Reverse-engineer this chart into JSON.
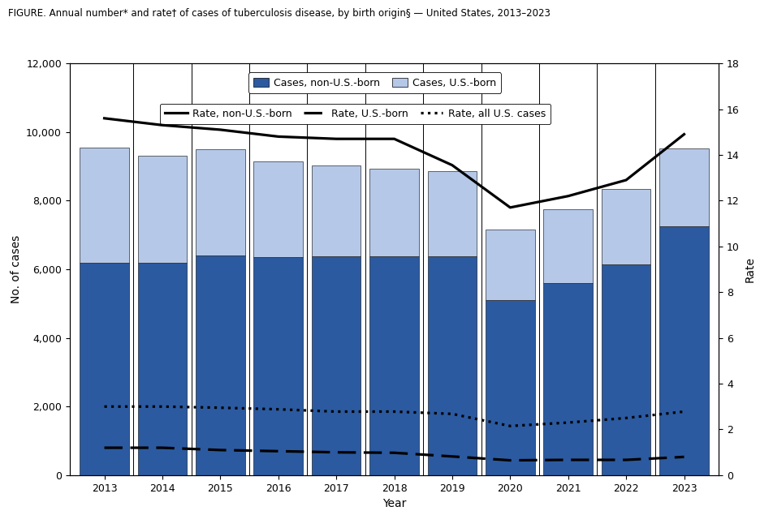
{
  "title": "FIGURE. Annual number* and rate† of cases of tuberculosis disease, by birth origin§ — United States, 2013–2023",
  "years": [
    2013,
    2014,
    2015,
    2016,
    2017,
    2018,
    2019,
    2020,
    2021,
    2022,
    2023
  ],
  "non_us_born": [
    6200,
    6200,
    6400,
    6350,
    6380,
    6380,
    6380,
    5100,
    5600,
    6150,
    7250
  ],
  "us_born": [
    3350,
    3100,
    3100,
    2800,
    2650,
    2550,
    2480,
    2050,
    2150,
    2200,
    2270
  ],
  "rate_non_us": [
    15.6,
    15.3,
    15.1,
    14.8,
    14.7,
    14.7,
    13.55,
    11.7,
    12.2,
    12.9,
    14.9
  ],
  "rate_us": [
    1.2,
    1.2,
    1.1,
    1.05,
    1.0,
    0.98,
    0.82,
    0.65,
    0.67,
    0.67,
    0.8
  ],
  "rate_all": [
    3.0,
    3.0,
    2.95,
    2.88,
    2.78,
    2.78,
    2.68,
    2.15,
    2.3,
    2.5,
    2.78
  ],
  "color_non_us": "#2b5aa0",
  "color_us": "#b5c8e8",
  "bar_edge": "#1a3a70",
  "background": "#ffffff",
  "ylabel_left": "No. of cases",
  "ylabel_right": "Rate",
  "xlabel": "Year",
  "ylim_left": [
    0,
    12000
  ],
  "ylim_right": [
    0,
    18
  ],
  "yticks_left": [
    0,
    2000,
    4000,
    6000,
    8000,
    10000,
    12000
  ],
  "yticks_right": [
    0,
    2,
    4,
    6,
    8,
    10,
    12,
    14,
    16,
    18
  ],
  "legend_row1": [
    "Cases, non-U.S.-born",
    "Cases, U.S.-born"
  ],
  "legend_row2": [
    "Rate, non-U.S.-born",
    "Rate, U.S.-born",
    "Rate, all U.S. cases"
  ]
}
